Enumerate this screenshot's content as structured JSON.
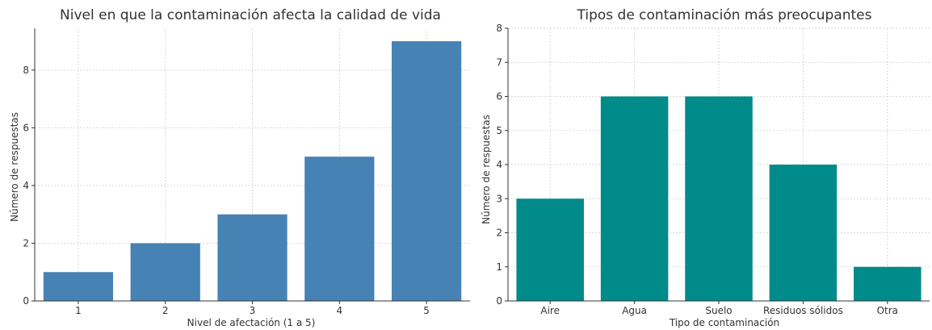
{
  "chart_data": [
    {
      "type": "bar",
      "title": "Nivel en que la contaminación afecta la calidad de vida",
      "xlabel": "Nivel de afectación (1 a 5)",
      "ylabel": "Número de respuestas",
      "categories": [
        "1",
        "2",
        "3",
        "4",
        "5"
      ],
      "values": [
        1,
        2,
        3,
        5,
        9
      ],
      "ylim": [
        0,
        9.45
      ],
      "yticks": [
        0,
        2,
        4,
        6,
        8
      ],
      "color": "#4682b4",
      "grid": true
    },
    {
      "type": "bar",
      "title": "Tipos de contaminación más preocupantes",
      "xlabel": "Tipo de contaminación",
      "ylabel": "Número de respuestas",
      "categories": [
        "Aire",
        "Agua",
        "Suelo",
        "Residuos sólidos",
        "Otra"
      ],
      "values": [
        3,
        6,
        6,
        4,
        1
      ],
      "ylim": [
        0,
        8
      ],
      "yticks": [
        0,
        1,
        2,
        3,
        4,
        5,
        6,
        7,
        8
      ],
      "color": "#008b8b",
      "grid": true
    }
  ]
}
